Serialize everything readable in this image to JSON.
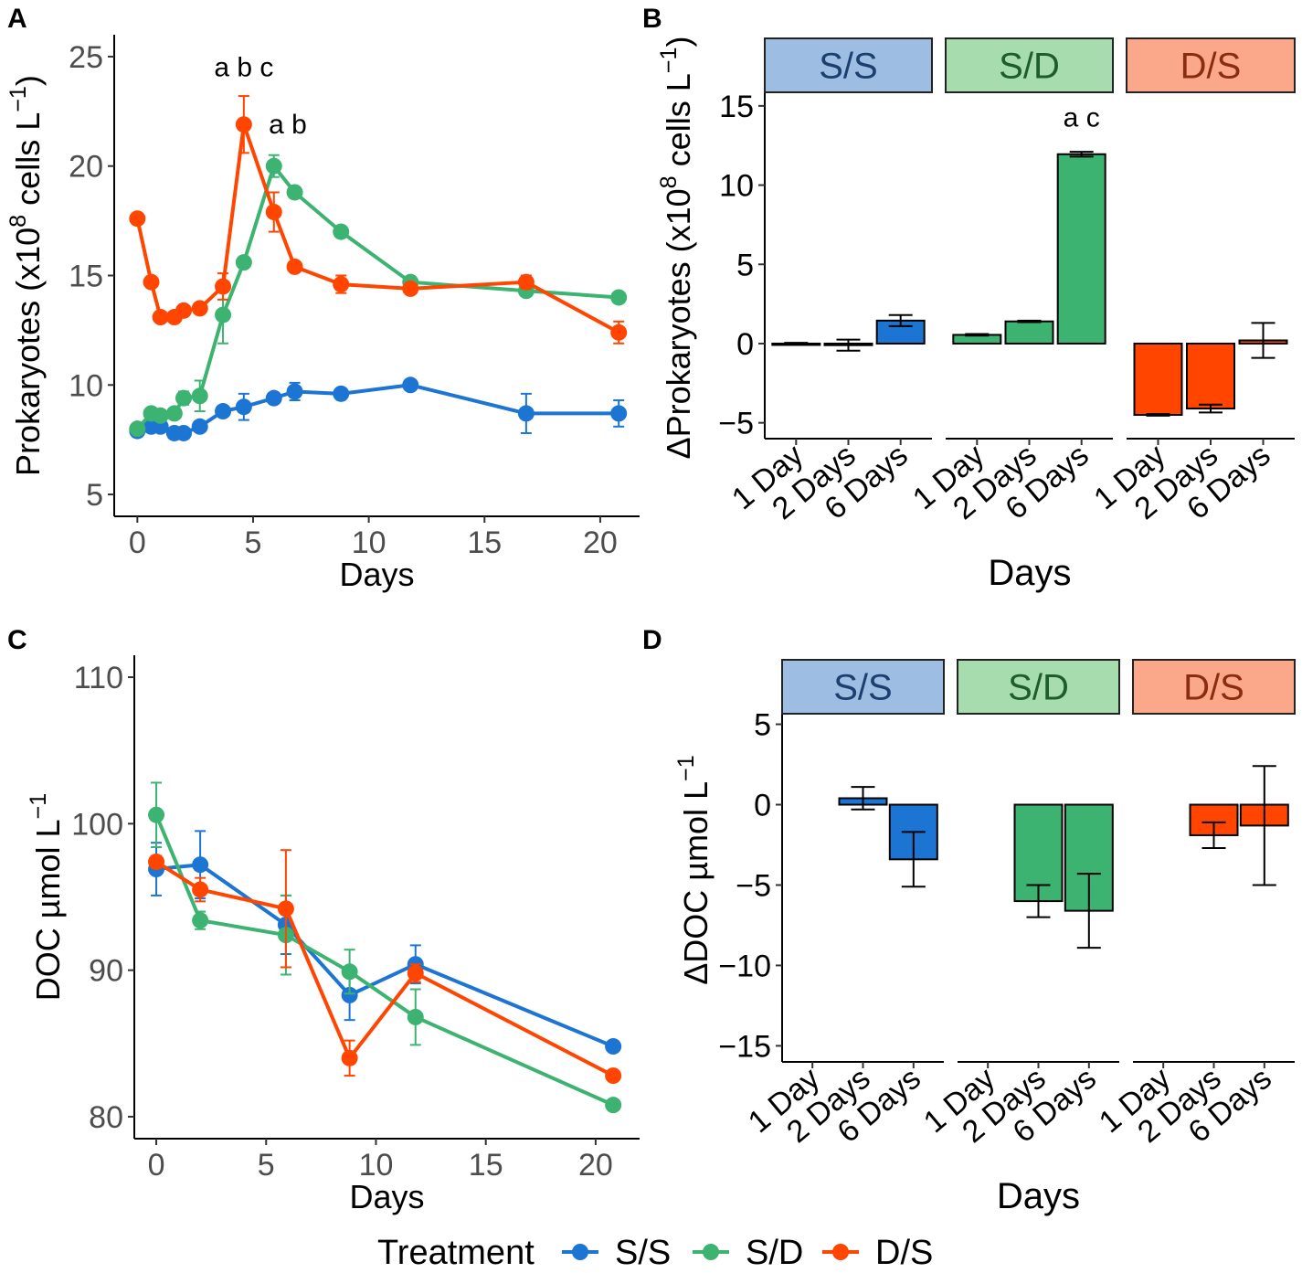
{
  "colors": {
    "ss": "#1c75d2",
    "sd": "#3cb371",
    "ds": "#ff4500",
    "ss_strip": "#9dbde3",
    "sd_strip": "#a6dcae",
    "ds_strip": "#fba88a",
    "ss_strip_text": "#1b3f6f",
    "sd_strip_text": "#1e5c2a",
    "ds_strip_text": "#8a2c0e"
  },
  "legend": {
    "title": "Treatment",
    "entries": [
      "S/S",
      "S/D",
      "D/S"
    ]
  },
  "chart_data": [
    {
      "panel": "A",
      "type": "line",
      "xlabel": "Days",
      "ylabel_main": "Prokaryotes (x10",
      "ylabel_sup": "8",
      "ylabel_tail": " cells L",
      "ylabel_sup2": "−1",
      "ylabel_close": ")",
      "xlim": [
        -1,
        21.7
      ],
      "ylim": [
        4,
        26
      ],
      "xticks": [
        0,
        5,
        10,
        15,
        20
      ],
      "yticks": [
        5,
        10,
        15,
        20,
        25
      ],
      "series": [
        {
          "name": "S/S",
          "x": [
            0,
            0.6,
            1,
            1.6,
            2,
            2.7,
            3.7,
            4.6,
            5.9,
            6.8,
            8.8,
            11.8,
            16.8,
            20.8
          ],
          "y": [
            7.9,
            8.1,
            8.1,
            7.8,
            7.8,
            8.1,
            8.8,
            9.0,
            9.4,
            9.7,
            9.6,
            10.0,
            8.7,
            8.7
          ],
          "err": [
            0.15,
            0.2,
            0.2,
            0.15,
            0.15,
            0.2,
            0.2,
            0.6,
            0.2,
            0.4,
            0.2,
            0.15,
            0.9,
            0.6
          ]
        },
        {
          "name": "S/D",
          "x": [
            0,
            0.6,
            1,
            1.6,
            2,
            2.7,
            3.7,
            4.6,
            5.9,
            6.8,
            8.8,
            11.8,
            16.8,
            20.8
          ],
          "y": [
            8.0,
            8.7,
            8.6,
            8.7,
            9.4,
            9.5,
            13.2,
            15.6,
            20.0,
            18.8,
            17.0,
            14.7,
            14.3,
            14.0
          ],
          "err": [
            0.1,
            0.2,
            0.2,
            0.2,
            0.3,
            0.7,
            1.3,
            0.2,
            0.5,
            0.2,
            0.2,
            0.2,
            0.2,
            0.2
          ]
        },
        {
          "name": "D/S",
          "x": [
            0,
            0.6,
            1,
            1.6,
            2,
            2.7,
            3.7,
            4.6,
            5.9,
            6.8,
            8.8,
            11.8,
            16.8,
            20.8
          ],
          "y": [
            17.6,
            14.7,
            13.1,
            13.1,
            13.4,
            13.5,
            14.5,
            21.9,
            17.9,
            15.4,
            14.6,
            14.4,
            14.7,
            12.4
          ],
          "err": [
            0.2,
            0.2,
            0.2,
            0.2,
            0.2,
            0.2,
            0.6,
            1.3,
            0.9,
            0.2,
            0.4,
            0.2,
            0.3,
            0.5
          ]
        }
      ],
      "annotations": [
        {
          "text": "a b c",
          "x": 4.6,
          "y": 24.1
        },
        {
          "text": "a b",
          "x": 6.5,
          "y": 21.5
        }
      ]
    },
    {
      "panel": "B",
      "type": "bar",
      "xlabel": "Days",
      "ylabel_main": "ΔProkaryotes (x10",
      "ylabel_sup": "8",
      "ylabel_tail": " cells L",
      "ylabel_sup2": "−1",
      "ylabel_close": ")",
      "ylim": [
        -6,
        15.8
      ],
      "yticks": [
        -5,
        0,
        5,
        10,
        15
      ],
      "categories": [
        "1 Day",
        "2 Days",
        "6 Days"
      ],
      "facets": [
        {
          "name": "S/S",
          "values": [
            0.0,
            -0.1,
            1.45
          ],
          "err": [
            0.05,
            0.35,
            0.35
          ]
        },
        {
          "name": "S/D",
          "values": [
            0.55,
            1.4,
            11.95
          ],
          "err": [
            0.05,
            0.05,
            0.15
          ]
        },
        {
          "name": "D/S",
          "values": [
            -4.5,
            -4.1,
            0.2
          ],
          "err": [
            0.05,
            0.25,
            1.1
          ]
        }
      ],
      "annotations": [
        {
          "text": "a c",
          "facet": "S/D",
          "category": "6 Days",
          "y": 13.7
        }
      ]
    },
    {
      "panel": "C",
      "type": "line",
      "xlabel": "Days",
      "ylabel_main": "DOC µmol L",
      "ylabel_sup": "−1",
      "xlim": [
        -1,
        22
      ],
      "ylim": [
        78.5,
        111.5
      ],
      "xticks": [
        0,
        5,
        10,
        15,
        20
      ],
      "yticks": [
        80,
        90,
        100,
        110
      ],
      "series": [
        {
          "name": "S/S",
          "x": [
            0,
            2,
            5.9,
            8.8,
            11.8,
            20.8
          ],
          "y": [
            96.9,
            97.2,
            93.1,
            88.3,
            90.4,
            84.8
          ],
          "err": [
            1.8,
            2.3,
            2.0,
            1.7,
            1.3,
            0.3
          ]
        },
        {
          "name": "S/D",
          "x": [
            0,
            2,
            5.9,
            8.8,
            11.8,
            20.8
          ],
          "y": [
            100.6,
            93.4,
            92.4,
            89.9,
            86.8,
            80.8
          ],
          "err": [
            2.2,
            0.6,
            2.7,
            1.5,
            1.9,
            0.3
          ]
        },
        {
          "name": "D/S",
          "x": [
            0,
            2,
            5.9,
            8.8,
            11.8,
            20.8
          ],
          "y": [
            97.4,
            95.5,
            94.2,
            84.0,
            89.8,
            82.8
          ],
          "err": [
            0.4,
            0.8,
            4.0,
            1.2,
            0.6,
            0.3
          ]
        }
      ]
    },
    {
      "panel": "D",
      "type": "bar",
      "xlabel": "Days",
      "ylabel_main": "ΔDOC µmol L",
      "ylabel_sup": "−1",
      "ylim": [
        -16,
        5.6
      ],
      "yticks": [
        -15,
        -10,
        -5,
        0,
        5
      ],
      "categories": [
        "1 Day",
        "2 Days",
        "6 Days"
      ],
      "facets": [
        {
          "name": "S/S",
          "values": [
            null,
            0.4,
            -3.4
          ],
          "err": [
            null,
            0.7,
            1.7
          ]
        },
        {
          "name": "S/D",
          "values": [
            null,
            -6.0,
            -6.6
          ],
          "err": [
            null,
            1.0,
            2.3
          ]
        },
        {
          "name": "D/S",
          "values": [
            null,
            -1.9,
            -1.3
          ],
          "err": [
            null,
            0.8,
            3.7
          ]
        }
      ]
    }
  ],
  "panel_labels": [
    "A",
    "B",
    "C",
    "D"
  ]
}
